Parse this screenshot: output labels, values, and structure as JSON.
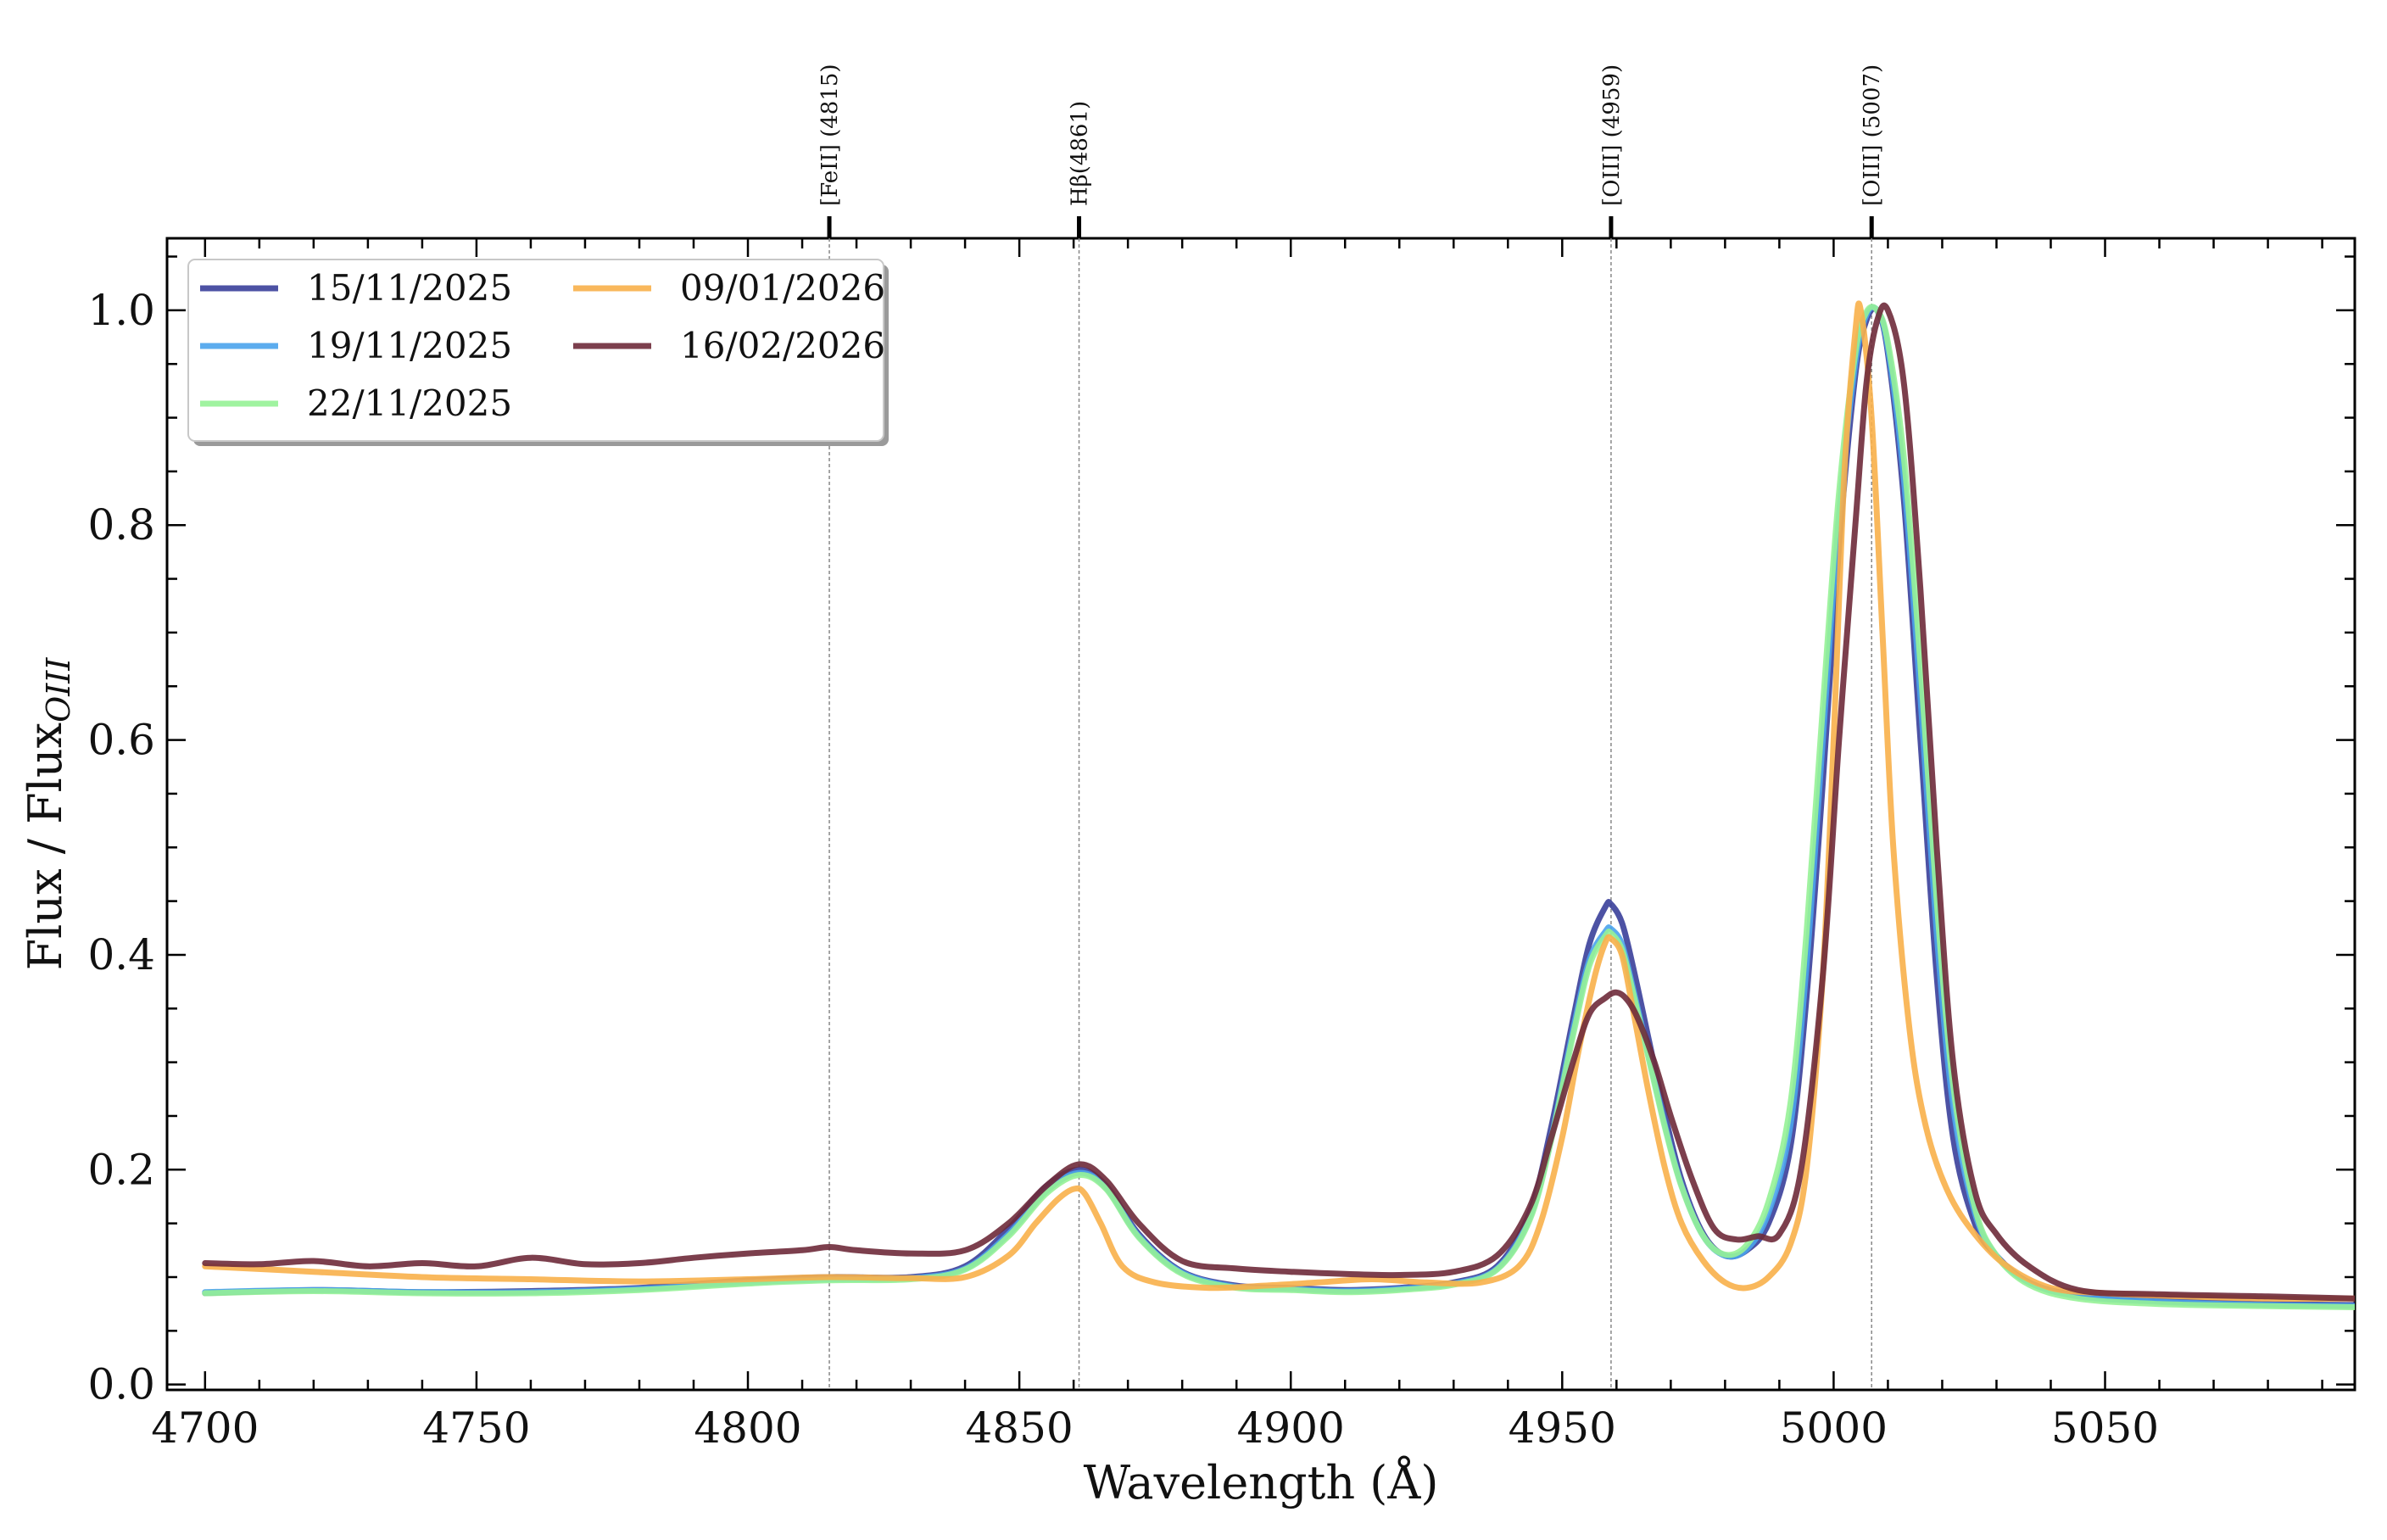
{
  "chart_data": {
    "type": "line",
    "xlabel": "Wavelength (Å)",
    "ylabel": "Flux / Flux",
    "ylabel_sub": "OIII",
    "xlim": [
      4693,
      5096
    ],
    "ylim": [
      -0.005,
      1.067
    ],
    "x_ticks": [
      4700,
      4750,
      4800,
      4850,
      4900,
      4950,
      5000,
      5050
    ],
    "y_ticks": [
      0.0,
      0.2,
      0.4,
      0.6,
      0.8,
      1.0
    ],
    "y_tick_labels": [
      "0.0",
      "0.2",
      "0.4",
      "0.6",
      "0.8",
      "1.0"
    ],
    "grid": false,
    "legend_position": "top-left",
    "reference_lines": [
      {
        "x": 4815,
        "label": "[FeII] (4815)"
      },
      {
        "x": 4861,
        "label": "Hβ(4861)"
      },
      {
        "x": 4959,
        "label": "[OIII] (4959)"
      },
      {
        "x": 5007,
        "label": "[OIII] (5007)"
      }
    ],
    "series": [
      {
        "name": "15/11/2025",
        "color": "#3a3f9a",
        "x": [
          4700,
          4720,
          4740,
          4760,
          4780,
          4800,
          4815,
          4830,
          4840,
          4848,
          4855,
          4861,
          4866,
          4872,
          4880,
          4890,
          4900,
          4910,
          4920,
          4930,
          4938,
          4944,
          4948,
          4952,
          4955,
          4958,
          4959,
          4961,
          4963,
          4966,
          4969,
          4972,
          4976,
          4980,
          4984,
          4988,
          4992,
          4995,
          4998,
          5001,
          5004,
          5006,
          5008,
          5010,
          5013,
          5016,
          5019,
          5022,
          5026,
          5030,
          5036,
          5045,
          5060,
          5080,
          5096
        ],
        "values": [
          0.085,
          0.088,
          0.086,
          0.087,
          0.09,
          0.097,
          0.1,
          0.1,
          0.11,
          0.145,
          0.185,
          0.2,
          0.185,
          0.14,
          0.105,
          0.092,
          0.09,
          0.088,
          0.09,
          0.095,
          0.11,
          0.16,
          0.24,
          0.34,
          0.41,
          0.445,
          0.447,
          0.43,
          0.39,
          0.32,
          0.25,
          0.19,
          0.14,
          0.12,
          0.125,
          0.15,
          0.22,
          0.36,
          0.56,
          0.78,
          0.94,
          0.99,
          1.0,
          0.96,
          0.82,
          0.6,
          0.38,
          0.23,
          0.15,
          0.12,
          0.095,
          0.083,
          0.078,
          0.075,
          0.074
        ]
      },
      {
        "name": "19/11/2025",
        "color": "#4aa3ec",
        "x": [
          4700,
          4720,
          4740,
          4760,
          4780,
          4800,
          4815,
          4830,
          4840,
          4848,
          4855,
          4861,
          4866,
          4872,
          4880,
          4890,
          4900,
          4910,
          4920,
          4930,
          4938,
          4944,
          4948,
          4952,
          4955,
          4958,
          4959,
          4961,
          4963,
          4966,
          4969,
          4972,
          4976,
          4980,
          4984,
          4988,
          4992,
          4995,
          4998,
          5001,
          5004,
          5006,
          5008,
          5010,
          5013,
          5016,
          5019,
          5022,
          5026,
          5030,
          5036,
          5045,
          5060,
          5080,
          5096
        ],
        "values": [
          0.086,
          0.088,
          0.086,
          0.086,
          0.089,
          0.095,
          0.098,
          0.099,
          0.108,
          0.14,
          0.18,
          0.197,
          0.183,
          0.138,
          0.104,
          0.091,
          0.089,
          0.087,
          0.089,
          0.094,
          0.108,
          0.155,
          0.23,
          0.33,
          0.395,
          0.422,
          0.424,
          0.41,
          0.37,
          0.305,
          0.24,
          0.185,
          0.138,
          0.12,
          0.126,
          0.16,
          0.24,
          0.39,
          0.6,
          0.81,
          0.95,
          0.995,
          1.0,
          0.965,
          0.84,
          0.64,
          0.42,
          0.26,
          0.16,
          0.12,
          0.095,
          0.082,
          0.077,
          0.074,
          0.073
        ]
      },
      {
        "name": "22/11/2025",
        "color": "#96f296",
        "x": [
          4700,
          4720,
          4740,
          4760,
          4780,
          4800,
          4815,
          4830,
          4840,
          4848,
          4855,
          4861,
          4866,
          4872,
          4880,
          4890,
          4900,
          4910,
          4920,
          4930,
          4938,
          4944,
          4948,
          4952,
          4955,
          4958,
          4959,
          4961,
          4963,
          4966,
          4969,
          4972,
          4976,
          4980,
          4984,
          4988,
          4992,
          4995,
          4998,
          5001,
          5004,
          5006,
          5008,
          5010,
          5013,
          5016,
          5019,
          5022,
          5026,
          5030,
          5036,
          5045,
          5060,
          5080,
          5096
        ],
        "values": [
          0.085,
          0.087,
          0.085,
          0.085,
          0.088,
          0.094,
          0.097,
          0.098,
          0.107,
          0.138,
          0.178,
          0.195,
          0.182,
          0.137,
          0.103,
          0.09,
          0.088,
          0.086,
          0.088,
          0.093,
          0.107,
          0.153,
          0.228,
          0.325,
          0.39,
          0.418,
          0.42,
          0.405,
          0.366,
          0.302,
          0.238,
          0.184,
          0.138,
          0.121,
          0.13,
          0.17,
          0.26,
          0.42,
          0.63,
          0.83,
          0.96,
          0.998,
          1.0,
          0.97,
          0.86,
          0.67,
          0.45,
          0.28,
          0.165,
          0.12,
          0.093,
          0.08,
          0.075,
          0.073,
          0.072
        ]
      },
      {
        "name": "09/01/2026",
        "color": "#f8b04a",
        "x": [
          4700,
          4720,
          4740,
          4760,
          4780,
          4800,
          4815,
          4830,
          4840,
          4848,
          4853,
          4857,
          4860,
          4862,
          4865,
          4869,
          4875,
          4885,
          4895,
          4905,
          4915,
          4925,
          4935,
          4942,
          4946,
          4950,
          4953,
          4956,
          4958,
          4959,
          4961,
          4963,
          4966,
          4969,
          4972,
          4976,
          4980,
          4984,
          4988,
          4992,
          4995,
          4998,
          5000,
          5002,
          5004,
          5005,
          5007,
          5009,
          5011,
          5014,
          5017,
          5021,
          5026,
          5032,
          5040,
          5050,
          5065,
          5080,
          5096
        ],
        "values": [
          0.11,
          0.105,
          0.1,
          0.098,
          0.096,
          0.098,
          0.1,
          0.099,
          0.1,
          0.12,
          0.15,
          0.172,
          0.182,
          0.178,
          0.15,
          0.11,
          0.095,
          0.09,
          0.092,
          0.095,
          0.098,
          0.095,
          0.095,
          0.11,
          0.15,
          0.23,
          0.31,
          0.38,
          0.412,
          0.415,
          0.4,
          0.35,
          0.27,
          0.2,
          0.15,
          0.115,
          0.095,
          0.09,
          0.1,
          0.13,
          0.2,
          0.38,
          0.6,
          0.85,
          0.98,
          1.0,
          0.9,
          0.7,
          0.5,
          0.33,
          0.24,
          0.18,
          0.14,
          0.11,
          0.09,
          0.085,
          0.082,
          0.08,
          0.08
        ]
      },
      {
        "name": "16/02/2026",
        "color": "#6e2a3a",
        "x": [
          4700,
          4710,
          4720,
          4730,
          4740,
          4750,
          4760,
          4770,
          4780,
          4790,
          4800,
          4810,
          4815,
          4820,
          4830,
          4840,
          4848,
          4855,
          4861,
          4866,
          4872,
          4880,
          4890,
          4900,
          4910,
          4920,
          4930,
          4938,
          4944,
          4948,
          4952,
          4955,
          4958,
          4960,
          4962,
          4964,
          4967,
          4970,
          4974,
          4978,
          4982,
          4986,
          4990,
          4994,
          4998,
          5001,
          5004,
          5006,
          5008,
          5010,
          5013,
          5016,
          5019,
          5022,
          5026,
          5030,
          5036,
          5045,
          5060,
          5080,
          5096
        ],
        "values": [
          0.113,
          0.112,
          0.115,
          0.11,
          0.113,
          0.11,
          0.118,
          0.112,
          0.113,
          0.118,
          0.122,
          0.125,
          0.128,
          0.125,
          0.122,
          0.125,
          0.15,
          0.185,
          0.205,
          0.19,
          0.15,
          0.115,
          0.108,
          0.105,
          0.103,
          0.102,
          0.105,
          0.12,
          0.165,
          0.23,
          0.3,
          0.345,
          0.36,
          0.365,
          0.358,
          0.34,
          0.3,
          0.25,
          0.19,
          0.145,
          0.135,
          0.138,
          0.14,
          0.2,
          0.38,
          0.6,
          0.8,
          0.93,
          0.99,
          1.0,
          0.93,
          0.74,
          0.5,
          0.3,
          0.18,
          0.14,
          0.11,
          0.088,
          0.084,
          0.082,
          0.08
        ]
      }
    ]
  }
}
